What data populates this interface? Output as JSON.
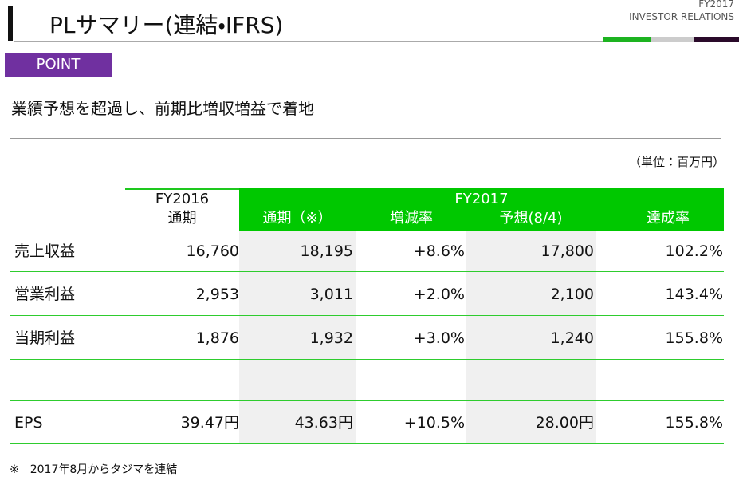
{
  "header": {
    "title": "PLサマリー(連結・IFRS)",
    "brand_year": "FY2017",
    "brand_name": "INVESTOR RELATIONS"
  },
  "point": {
    "label": "POINT",
    "headline": "業績予想を超過し、前期比増収増益で着地"
  },
  "unit": "（単位：百万円）",
  "table": {
    "fy2016": [
      "FY2016",
      "通期"
    ],
    "fy2017": "FY2017",
    "columns": [
      "通期（※）",
      "増減率",
      "予想(8/4)",
      "達成率"
    ],
    "rows": [
      {
        "label": "売上収益",
        "values": [
          "16,760",
          "18,195",
          "+8.6%",
          "17,800",
          "102.2%"
        ]
      },
      {
        "label": "営業利益",
        "values": [
          "2,953",
          "3,011",
          "+2.0%",
          "2,100",
          "143.4%"
        ]
      },
      {
        "label": "当期利益",
        "values": [
          "1,876",
          "1,932",
          "+3.0%",
          "1,240",
          "155.8%"
        ]
      },
      {
        "label": "EPS",
        "values": [
          "39.47円",
          "43.63円",
          "+10.5%",
          "28.00円",
          "155.8%"
        ]
      }
    ]
  },
  "footnote": "※　2017年8月からタジマを連結"
}
